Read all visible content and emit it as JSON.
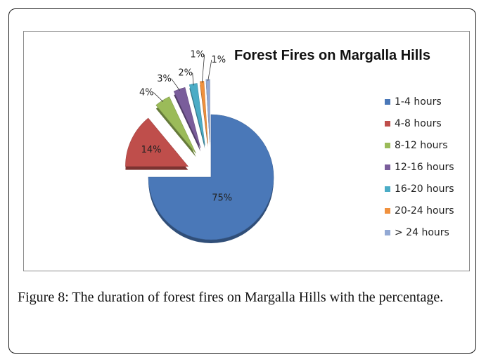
{
  "chart_data": {
    "type": "pie",
    "title": "Forest Fires on Margalla Hills",
    "categories": [
      "1-4 hours",
      "4-8 hours",
      "8-12 hours",
      "12-16 hours",
      "16-20 hours",
      "20-24 hours",
      "> 24 hours"
    ],
    "values": [
      75,
      14,
      4,
      3,
      2,
      1,
      1
    ],
    "value_labels": [
      "75%",
      "14%",
      "4%",
      "3%",
      "2%",
      "1%",
      "1%"
    ],
    "colors": [
      "#4a78b8",
      "#bf4e4b",
      "#9bbb59",
      "#7a5d9b",
      "#4bacc6",
      "#f0913e",
      "#93a9d4"
    ],
    "exploded": true,
    "legend_position": "right"
  },
  "caption": {
    "label": "Figure 8:",
    "text": "The duration of forest fires on Margalla Hills with the percentage."
  }
}
